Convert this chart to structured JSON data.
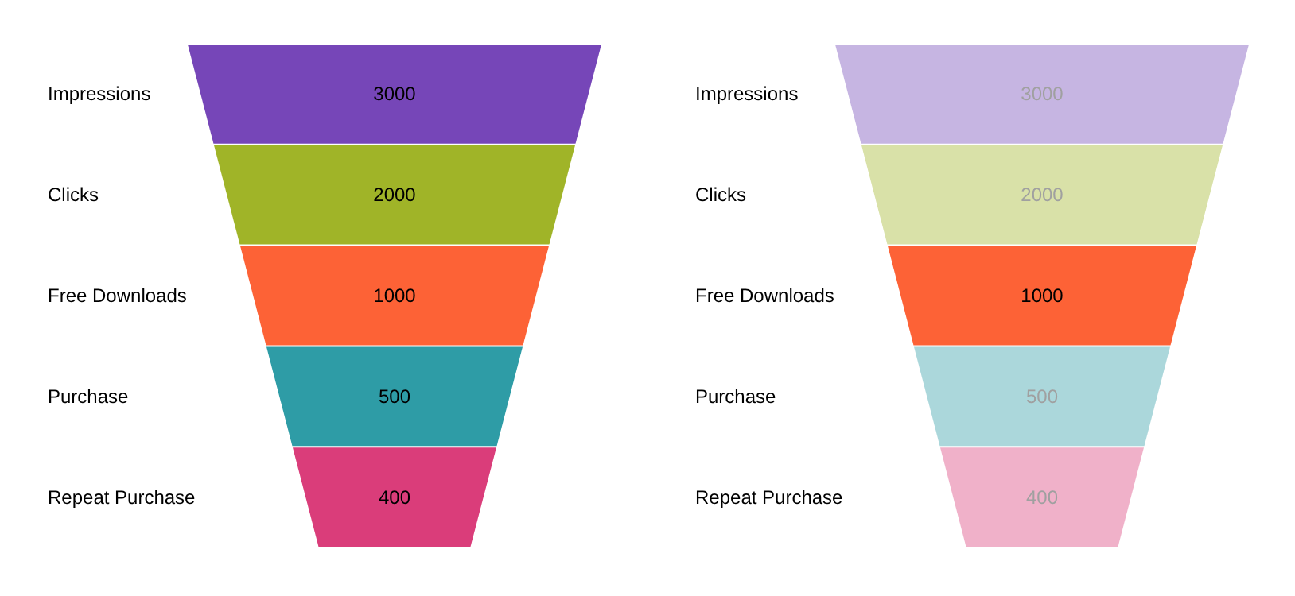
{
  "chart_data": [
    {
      "type": "other",
      "categories": [
        "Impressions",
        "Clicks",
        "Free Downloads",
        "Purchase",
        "Repeat Purchase"
      ],
      "values": [
        3000,
        2000,
        1000,
        500,
        400
      ],
      "colors": [
        "#7646b8",
        "#a0b428",
        "#fd6236",
        "#2e9ca6",
        "#da3d7a"
      ],
      "data_labels": true
    },
    {
      "type": "other",
      "categories": [
        "Impressions",
        "Clicks",
        "Free Downloads",
        "Purchase",
        "Repeat Purchase"
      ],
      "values": [
        3000,
        2000,
        1000,
        500,
        400
      ],
      "colors": [
        "#c6b5e2",
        "#d9e1a8",
        "#fd6236",
        "#abd7db",
        "#f0b1c9"
      ],
      "data_labels": true
    }
  ]
}
